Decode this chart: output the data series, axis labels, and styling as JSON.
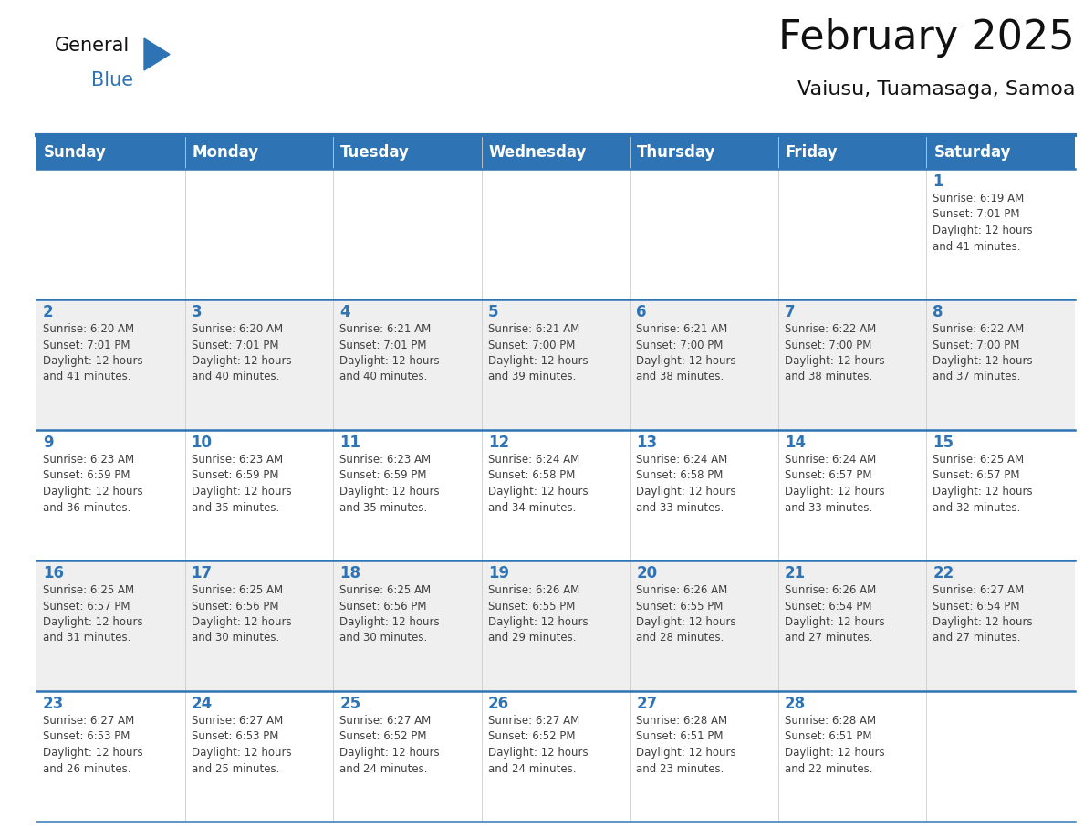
{
  "title": "February 2025",
  "subtitle": "Vaiusu, Tuamasaga, Samoa",
  "days_of_week": [
    "Sunday",
    "Monday",
    "Tuesday",
    "Wednesday",
    "Thursday",
    "Friday",
    "Saturday"
  ],
  "header_bg": "#2E74B5",
  "header_text_color": "#FFFFFF",
  "cell_bg_even": "#FFFFFF",
  "cell_bg_odd": "#EFEFEF",
  "separator_color": "#2E74B5",
  "day_number_color": "#2E74B5",
  "text_color": "#404040",
  "grid_color": "#CCCCCC",
  "weeks": [
    [
      null,
      null,
      null,
      null,
      null,
      null,
      1
    ],
    [
      2,
      3,
      4,
      5,
      6,
      7,
      8
    ],
    [
      9,
      10,
      11,
      12,
      13,
      14,
      15
    ],
    [
      16,
      17,
      18,
      19,
      20,
      21,
      22
    ],
    [
      23,
      24,
      25,
      26,
      27,
      28,
      null
    ]
  ],
  "sunrise_data": {
    "1": "Sunrise: 6:19 AM\nSunset: 7:01 PM\nDaylight: 12 hours\nand 41 minutes.",
    "2": "Sunrise: 6:20 AM\nSunset: 7:01 PM\nDaylight: 12 hours\nand 41 minutes.",
    "3": "Sunrise: 6:20 AM\nSunset: 7:01 PM\nDaylight: 12 hours\nand 40 minutes.",
    "4": "Sunrise: 6:21 AM\nSunset: 7:01 PM\nDaylight: 12 hours\nand 40 minutes.",
    "5": "Sunrise: 6:21 AM\nSunset: 7:00 PM\nDaylight: 12 hours\nand 39 minutes.",
    "6": "Sunrise: 6:21 AM\nSunset: 7:00 PM\nDaylight: 12 hours\nand 38 minutes.",
    "7": "Sunrise: 6:22 AM\nSunset: 7:00 PM\nDaylight: 12 hours\nand 38 minutes.",
    "8": "Sunrise: 6:22 AM\nSunset: 7:00 PM\nDaylight: 12 hours\nand 37 minutes.",
    "9": "Sunrise: 6:23 AM\nSunset: 6:59 PM\nDaylight: 12 hours\nand 36 minutes.",
    "10": "Sunrise: 6:23 AM\nSunset: 6:59 PM\nDaylight: 12 hours\nand 35 minutes.",
    "11": "Sunrise: 6:23 AM\nSunset: 6:59 PM\nDaylight: 12 hours\nand 35 minutes.",
    "12": "Sunrise: 6:24 AM\nSunset: 6:58 PM\nDaylight: 12 hours\nand 34 minutes.",
    "13": "Sunrise: 6:24 AM\nSunset: 6:58 PM\nDaylight: 12 hours\nand 33 minutes.",
    "14": "Sunrise: 6:24 AM\nSunset: 6:57 PM\nDaylight: 12 hours\nand 33 minutes.",
    "15": "Sunrise: 6:25 AM\nSunset: 6:57 PM\nDaylight: 12 hours\nand 32 minutes.",
    "16": "Sunrise: 6:25 AM\nSunset: 6:57 PM\nDaylight: 12 hours\nand 31 minutes.",
    "17": "Sunrise: 6:25 AM\nSunset: 6:56 PM\nDaylight: 12 hours\nand 30 minutes.",
    "18": "Sunrise: 6:25 AM\nSunset: 6:56 PM\nDaylight: 12 hours\nand 30 minutes.",
    "19": "Sunrise: 6:26 AM\nSunset: 6:55 PM\nDaylight: 12 hours\nand 29 minutes.",
    "20": "Sunrise: 6:26 AM\nSunset: 6:55 PM\nDaylight: 12 hours\nand 28 minutes.",
    "21": "Sunrise: 6:26 AM\nSunset: 6:54 PM\nDaylight: 12 hours\nand 27 minutes.",
    "22": "Sunrise: 6:27 AM\nSunset: 6:54 PM\nDaylight: 12 hours\nand 27 minutes.",
    "23": "Sunrise: 6:27 AM\nSunset: 6:53 PM\nDaylight: 12 hours\nand 26 minutes.",
    "24": "Sunrise: 6:27 AM\nSunset: 6:53 PM\nDaylight: 12 hours\nand 25 minutes.",
    "25": "Sunrise: 6:27 AM\nSunset: 6:52 PM\nDaylight: 12 hours\nand 24 minutes.",
    "26": "Sunrise: 6:27 AM\nSunset: 6:52 PM\nDaylight: 12 hours\nand 24 minutes.",
    "27": "Sunrise: 6:28 AM\nSunset: 6:51 PM\nDaylight: 12 hours\nand 23 minutes.",
    "28": "Sunrise: 6:28 AM\nSunset: 6:51 PM\nDaylight: 12 hours\nand 22 minutes."
  },
  "logo_text_general": "General",
  "logo_text_blue": "Blue",
  "logo_color_general": "#111111",
  "logo_color_blue": "#2E74B5",
  "logo_triangle_color": "#2E74B5",
  "title_fontsize": 32,
  "subtitle_fontsize": 16,
  "header_fontsize": 12,
  "day_num_fontsize": 12,
  "info_fontsize": 8.5,
  "logo_fontsize": 15
}
